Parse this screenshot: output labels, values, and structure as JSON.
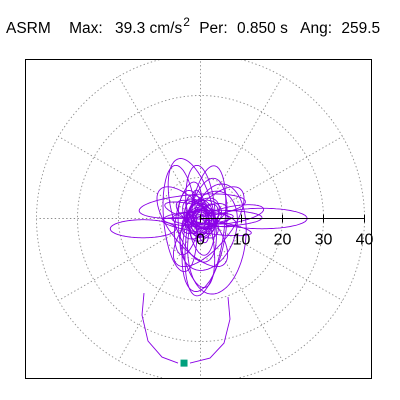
{
  "header": {
    "method": "ASRM",
    "max_label": "Max:",
    "max_value": "39.3 cm/s",
    "max_exp": "2",
    "per_label": "Per:",
    "per_value": "0.850 s",
    "ang_label": "Ang:",
    "ang_value": "259.5"
  },
  "chart_data": {
    "type": "polar-orbit",
    "title": "",
    "r_ticks": [
      0,
      10,
      20,
      30,
      40
    ],
    "r_tick_labels": [
      "0",
      "10",
      "20",
      "30",
      "40"
    ],
    "r_max": 40,
    "angular_grid_deg": [
      0,
      30,
      60,
      90,
      120,
      150,
      180,
      210,
      240,
      270,
      300,
      330
    ],
    "grid": true,
    "grid_style": "dotted",
    "series": [
      {
        "kind": "orbit",
        "color": "#8a00e6",
        "loops": [
          {
            "a": 7,
            "b": 1.6,
            "theta": 0,
            "cx": 0,
            "cy": 0
          },
          {
            "a": 6,
            "b": 2.4,
            "theta": 30,
            "cx": 1,
            "cy": 0
          },
          {
            "a": 5.5,
            "b": 2.4,
            "theta": -30,
            "cx": -1,
            "cy": 1
          },
          {
            "a": 5,
            "b": 2.7,
            "theta": 60,
            "cx": 1,
            "cy": -1
          },
          {
            "a": 5.2,
            "b": 2.6,
            "theta": -60,
            "cx": 0,
            "cy": 1
          },
          {
            "a": 4.6,
            "b": 3.2,
            "theta": 90,
            "cx": 0,
            "cy": 0
          },
          {
            "a": 4.2,
            "b": 3.4,
            "theta": 15,
            "cx": 1,
            "cy": 1
          },
          {
            "a": 4.4,
            "b": 2.8,
            "theta": -75,
            "cx": -1,
            "cy": 0
          },
          {
            "a": 6.5,
            "b": 1.8,
            "theta": 100,
            "cx": 0,
            "cy": 0.5
          },
          {
            "a": 3.5,
            "b": 3,
            "theta": 45,
            "cx": -0.5,
            "cy": -0.5
          },
          {
            "a": 3.8,
            "b": 2.6,
            "theta": -45,
            "cx": 0.5,
            "cy": 0.5
          },
          {
            "a": 3,
            "b": 2.2,
            "theta": 80,
            "cx": 0,
            "cy": -1
          },
          {
            "a": 2.8,
            "b": 2.4,
            "theta": 10,
            "cx": 0,
            "cy": 0
          },
          {
            "a": 2.4,
            "b": 2,
            "theta": 120,
            "cx": 0.5,
            "cy": 0
          },
          {
            "a": 2,
            "b": 1.6,
            "theta": -20,
            "cx": 0,
            "cy": 0.5
          },
          {
            "a": 1.6,
            "b": 1.3,
            "theta": 70,
            "cx": 0,
            "cy": 0
          },
          {
            "a": 1.3,
            "b": 1,
            "theta": 20,
            "cx": 0.3,
            "cy": -0.3
          },
          {
            "a": 5.8,
            "b": 3.5,
            "theta": 50,
            "cx": 0,
            "cy": 0
          },
          {
            "a": 5.6,
            "b": 3.2,
            "theta": -50,
            "cx": 0,
            "cy": 0
          },
          {
            "a": 3.3,
            "b": 1.8,
            "theta": 95,
            "cx": -0.5,
            "cy": 0.5
          },
          {
            "a": 9,
            "b": 2,
            "theta": -15,
            "cx": 0,
            "cy": 1
          },
          {
            "a": 6,
            "b": 1.2,
            "theta": 5,
            "cx": 2,
            "cy": 0
          },
          {
            "a": 9,
            "b": 3,
            "theta": 80,
            "cx": -3,
            "cy": 0
          },
          {
            "a": 11,
            "b": 3.5,
            "theta": 95,
            "cx": 0,
            "cy": 2
          },
          {
            "a": 14,
            "b": 5,
            "theta": 80,
            "cx": 1,
            "cy": -4
          },
          {
            "a": 13,
            "b": 4,
            "theta": 95,
            "cx": -5,
            "cy": 0
          },
          {
            "a": 13,
            "b": 5,
            "theta": 105,
            "cx": -2,
            "cy": 2
          },
          {
            "a": 13.5,
            "b": 7,
            "theta": 83,
            "cx": 4,
            "cy": -5
          },
          {
            "a": 16,
            "b": 4.5,
            "theta": 82,
            "cx": 1.2,
            "cy": -3
          },
          {
            "a": 12,
            "b": 5,
            "theta": 50,
            "cx": 2,
            "cy": -2
          },
          {
            "a": 12,
            "b": 5,
            "theta": 130,
            "cx": -2,
            "cy": -2
          },
          {
            "a": 10,
            "b": 6.5,
            "theta": 70,
            "cx": 2,
            "cy": -3
          },
          {
            "a": 12,
            "b": 4,
            "theta": 100,
            "cx": -1,
            "cy": -5
          },
          {
            "a": 13,
            "b": 2.8,
            "theta": 5,
            "cx": -2,
            "cy": 3
          },
          {
            "a": 11,
            "b": 1.6,
            "theta": -8,
            "cx": 1.5,
            "cy": -2
          },
          {
            "a": 12,
            "b": 2,
            "theta": 1,
            "cx": 3,
            "cy": 0
          },
          {
            "a": 11,
            "b": 2.5,
            "theta": 0,
            "cx": 15,
            "cy": 0
          },
          {
            "a": 8,
            "b": 2.2,
            "theta": 180,
            "cx": -14,
            "cy": -2.5
          },
          {
            "a": 7.5,
            "b": 2,
            "theta": 10,
            "cx": 8,
            "cy": 1
          }
        ]
      }
    ],
    "end_marker": {
      "r": 35.5,
      "angle_deg": 263.5,
      "color": "#00a07c"
    }
  }
}
